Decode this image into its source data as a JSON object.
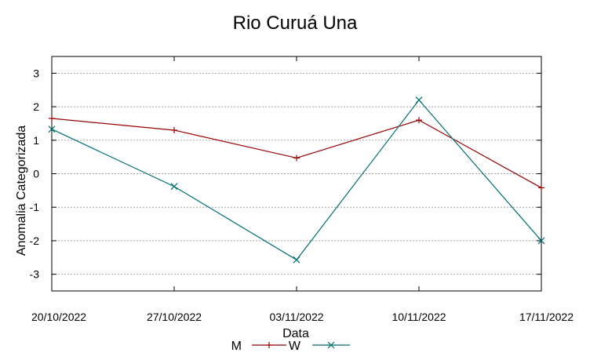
{
  "chart_data": {
    "type": "line",
    "title": "Rio Curuá Una",
    "xlabel": "Data",
    "ylabel": "Anomalia Categorizada",
    "categories": [
      "20/10/2022",
      "27/10/2022",
      "03/11/2022",
      "10/11/2022",
      "17/11/2022"
    ],
    "ylim": [
      -3.5,
      3.5
    ],
    "yticks": [
      "3",
      "2",
      "1",
      "0",
      "-1",
      "-2",
      "-3"
    ],
    "grid": true,
    "legend_position": "bottom",
    "series": [
      {
        "name": "M",
        "color": "#990000",
        "marker": "plus",
        "values": [
          1.65,
          1.3,
          0.47,
          1.6,
          -0.42
        ]
      },
      {
        "name": "W",
        "color": "#007070",
        "marker": "cross",
        "values": [
          1.33,
          -0.38,
          -2.57,
          2.2,
          -2.0
        ]
      }
    ]
  }
}
